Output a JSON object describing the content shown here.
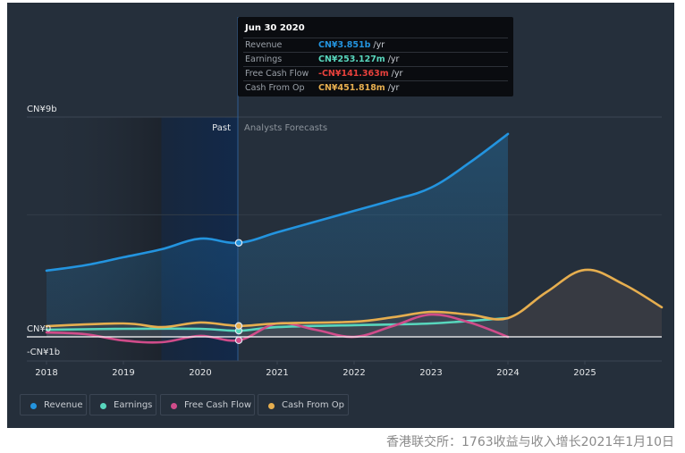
{
  "chart_data": {
    "type": "line",
    "title": "",
    "xlabel": "",
    "ylabel": "",
    "y_unit": "CN¥ billions",
    "ylim": [
      -1,
      9
    ],
    "xlim": [
      2018,
      2026
    ],
    "y_tick_labels": [
      {
        "value": 9,
        "label": "CN¥9b"
      },
      {
        "value": 0,
        "label": "CN¥0"
      },
      {
        "value": -1,
        "label": "-CN¥1b"
      }
    ],
    "x_tick_labels": [
      {
        "value": 2018,
        "label": "2018"
      },
      {
        "value": 2019,
        "label": "2019"
      },
      {
        "value": 2020,
        "label": "2020"
      },
      {
        "value": 2021,
        "label": "2021"
      },
      {
        "value": 2022,
        "label": "2022"
      },
      {
        "value": 2023,
        "label": "2023"
      },
      {
        "value": 2024,
        "label": "2024"
      },
      {
        "value": 2025,
        "label": "2025"
      }
    ],
    "past_boundary": 2020.5,
    "past_label": "Past",
    "forecast_label": "Analysts Forecasts",
    "grid": true,
    "legend_position": "bottom-left",
    "series": [
      {
        "name": "Revenue",
        "color": "#2394df",
        "x": [
          2018.0,
          2018.5,
          2019.0,
          2019.5,
          2020.0,
          2020.5,
          2021.0,
          2021.5,
          2022.0,
          2022.5,
          2023.0,
          2023.5,
          2024.0
        ],
        "values": [
          2.71,
          2.93,
          3.26,
          3.59,
          4.02,
          3.85,
          4.28,
          4.72,
          5.16,
          5.6,
          6.11,
          7.13,
          8.31
        ]
      },
      {
        "name": "Earnings",
        "color": "#58d6bd",
        "x": [
          2018.0,
          2019.0,
          2020.0,
          2020.5,
          2021.0,
          2022.0,
          2023.0,
          2024.0
        ],
        "values": [
          0.29,
          0.33,
          0.33,
          0.25,
          0.4,
          0.48,
          0.55,
          0.77
        ]
      },
      {
        "name": "Free Cash Flow",
        "color": "#d04c8a",
        "x": [
          2018.0,
          2018.5,
          2019.0,
          2019.5,
          2020.0,
          2020.5,
          2021.0,
          2021.5,
          2022.0,
          2022.5,
          2023.0,
          2023.5,
          2024.0
        ],
        "values": [
          0.18,
          0.11,
          -0.15,
          -0.22,
          0.04,
          -0.14,
          0.55,
          0.29,
          0.0,
          0.44,
          0.91,
          0.59,
          0.0
        ]
      },
      {
        "name": "Cash From Op",
        "color": "#e6ae4f",
        "x": [
          2018.0,
          2019.0,
          2019.5,
          2020.0,
          2020.5,
          2021.0,
          2022.0,
          2022.5,
          2023.0,
          2023.5,
          2024.0,
          2024.5,
          2025.0,
          2025.5,
          2026.0
        ],
        "values": [
          0.44,
          0.55,
          0.4,
          0.59,
          0.45,
          0.55,
          0.62,
          0.8,
          1.02,
          0.91,
          0.77,
          1.83,
          2.74,
          2.16,
          1.21
        ]
      }
    ],
    "highlight": {
      "x": 2020.5
    }
  },
  "tooltip": {
    "date": "Jun 30 2020",
    "rows": [
      {
        "label": "Revenue",
        "value": "CN¥3.851b",
        "unit": "/yr",
        "color": "#2394df"
      },
      {
        "label": "Earnings",
        "value": "CN¥253.127m",
        "unit": "/yr",
        "color": "#58d6bd"
      },
      {
        "label": "Free Cash Flow",
        "value": "-CN¥141.363m",
        "unit": "/yr",
        "color": "#e8413c"
      },
      {
        "label": "Cash From Op",
        "value": "CN¥451.818m",
        "unit": "/yr",
        "color": "#e6ae4f"
      }
    ]
  },
  "legend": [
    {
      "label": "Revenue",
      "color": "#2394df"
    },
    {
      "label": "Earnings",
      "color": "#58d6bd"
    },
    {
      "label": "Free Cash Flow",
      "color": "#d04c8a"
    },
    {
      "label": "Cash From Op",
      "color": "#e6ae4f"
    }
  ],
  "caption": "香港联交所：1763收益与收入增长2021年1月10日"
}
